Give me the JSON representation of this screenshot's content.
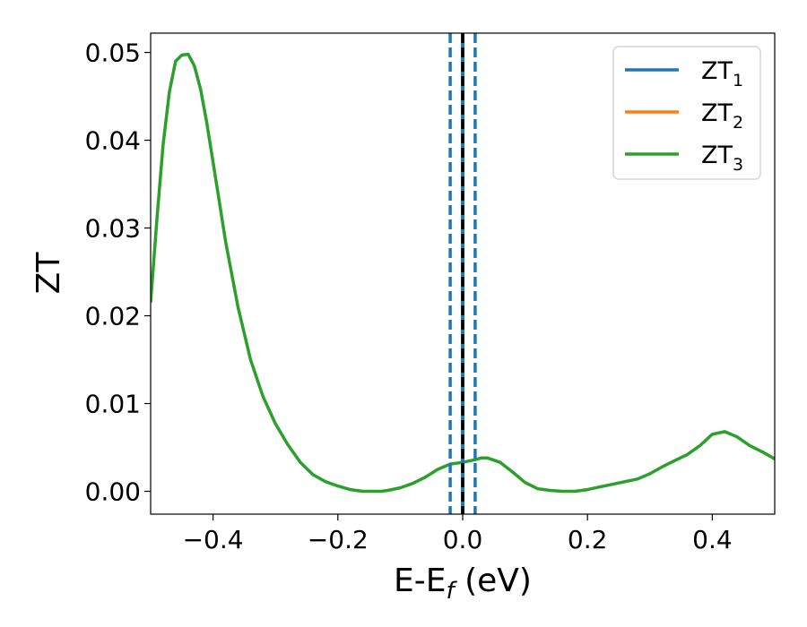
{
  "chart_data": {
    "type": "line",
    "title": "",
    "xlabel": {
      "base": "E-E",
      "sub": "f",
      "suffix": " (eV)"
    },
    "ylabel": "ZT",
    "xlim": [
      -0.5,
      0.5
    ],
    "ylim": [
      -0.0026,
      0.0522
    ],
    "xticks": [
      -0.4,
      -0.2,
      0.0,
      0.2,
      0.4
    ],
    "xtick_labels": [
      "−0.4",
      "−0.2",
      "0.0",
      "0.2",
      "0.4"
    ],
    "yticks": [
      0.0,
      0.01,
      0.02,
      0.03,
      0.04,
      0.05
    ],
    "ytick_labels": [
      "0.00",
      "0.01",
      "0.02",
      "0.03",
      "0.04",
      "0.05"
    ],
    "legend_position": "top-right",
    "series": [
      {
        "name": "ZT",
        "sub": "1",
        "color": "#1f77b4"
      },
      {
        "name": "ZT",
        "sub": "2",
        "color": "#ff7f0e"
      },
      {
        "name": "ZT",
        "sub": "3",
        "color": "#2ca02c",
        "x": [
          -0.5,
          -0.49,
          -0.48,
          -0.47,
          -0.46,
          -0.45,
          -0.44,
          -0.43,
          -0.42,
          -0.41,
          -0.4,
          -0.39,
          -0.38,
          -0.36,
          -0.34,
          -0.32,
          -0.3,
          -0.28,
          -0.26,
          -0.24,
          -0.22,
          -0.2,
          -0.18,
          -0.16,
          -0.14,
          -0.13,
          -0.12,
          -0.1,
          -0.08,
          -0.06,
          -0.04,
          -0.02,
          0.0,
          0.02,
          0.03,
          0.04,
          0.06,
          0.08,
          0.1,
          0.12,
          0.14,
          0.16,
          0.18,
          0.2,
          0.22,
          0.24,
          0.26,
          0.28,
          0.3,
          0.32,
          0.34,
          0.36,
          0.38,
          0.4,
          0.42,
          0.44,
          0.46,
          0.48,
          0.5
        ],
        "y": [
          0.0215,
          0.031,
          0.0395,
          0.0455,
          0.049,
          0.0497,
          0.0498,
          0.0485,
          0.0458,
          0.042,
          0.0375,
          0.033,
          0.0285,
          0.021,
          0.015,
          0.0108,
          0.0077,
          0.0053,
          0.0033,
          0.0019,
          0.0011,
          0.0006,
          0.0002,
          0.0,
          0.0,
          0.0,
          0.0001,
          0.0004,
          0.0009,
          0.0016,
          0.0025,
          0.0031,
          0.0033,
          0.0036,
          0.0038,
          0.0038,
          0.0033,
          0.0022,
          0.001,
          0.0003,
          0.0001,
          0.0,
          0.0,
          0.0002,
          0.0005,
          0.0008,
          0.0011,
          0.0014,
          0.002,
          0.0028,
          0.0035,
          0.0042,
          0.0052,
          0.0065,
          0.0068,
          0.0062,
          0.0052,
          0.0045,
          0.0037
        ]
      }
    ],
    "vlines": [
      {
        "x": -0.02,
        "style": "dashed",
        "color": "#1f77b4"
      },
      {
        "x": 0.0,
        "style": "solid",
        "color": "#1f77b4"
      },
      {
        "x": 0.0,
        "style": "dashed",
        "color": "#000000"
      },
      {
        "x": 0.02,
        "style": "dashed",
        "color": "#1f77b4"
      }
    ]
  }
}
